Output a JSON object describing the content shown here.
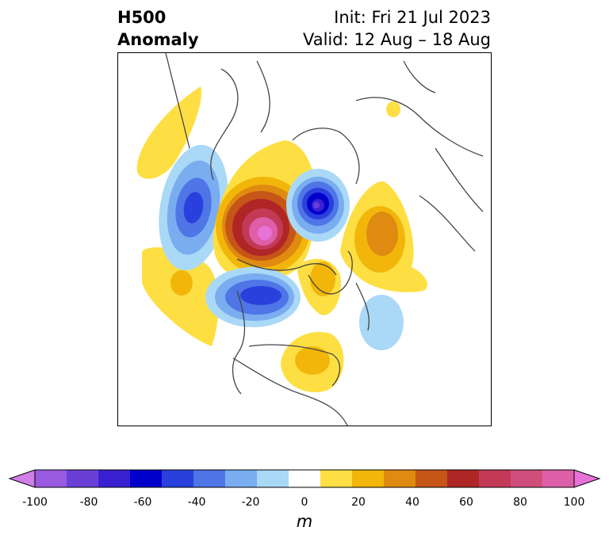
{
  "title": {
    "left_line1": "H500",
    "left_line2": "Anomaly",
    "init": "Init: Fri 21 Jul 2023",
    "valid": "Valid: 12 Aug – 18 Aug"
  },
  "colorbar": {
    "unit": "m",
    "ticks": [
      "-100",
      "-80",
      "-60",
      "-40",
      "-20",
      "0",
      "20",
      "40",
      "60",
      "80",
      "100"
    ],
    "colors": [
      "#d07ee8",
      "#9a5ae0",
      "#6a3fd8",
      "#3a20d0",
      "#0000cc",
      "#2a40dd",
      "#4f75e6",
      "#79adf0",
      "#aad8f7",
      "#ffffff",
      "#fedf43",
      "#f2b60a",
      "#df8a10",
      "#c65518",
      "#b02525",
      "#c23a58",
      "#cf4e7c",
      "#dd5fa8",
      "#e773d8"
    ],
    "range": [
      -100,
      100
    ]
  },
  "anomalies": [
    {
      "region": "pole-negative",
      "value": -90
    },
    {
      "region": "baffin-positive",
      "value": 100
    },
    {
      "region": "alaska-pacific-negative",
      "value": -60
    },
    {
      "region": "siberia-negative",
      "value": -70
    },
    {
      "region": "scandinavia-positive",
      "value": 40
    },
    {
      "region": "eastern-us-positive",
      "value": 30
    },
    {
      "region": "atlantic-negative",
      "value": -20
    },
    {
      "region": "east-asia-positive",
      "value": 20
    },
    {
      "region": "north-pacific-positive",
      "value": 20
    }
  ]
}
